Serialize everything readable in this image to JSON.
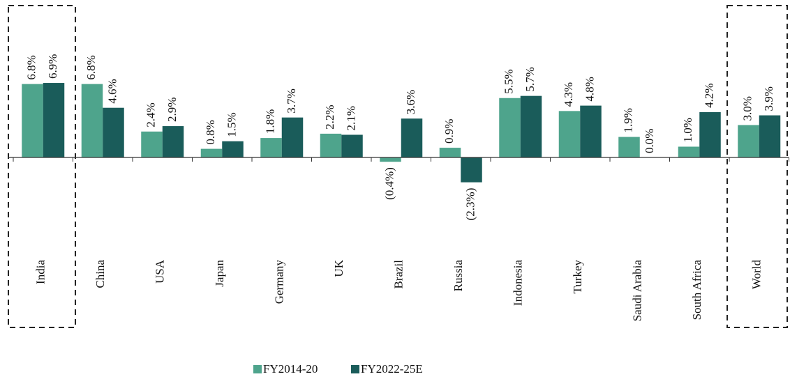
{
  "chart_data": {
    "type": "bar",
    "categories": [
      "India",
      "China",
      "USA",
      "Japan",
      "Germany",
      "UK",
      "Brazil",
      "Russia",
      "Indonesia",
      "Turkey",
      "Saudi Arabia",
      "South Africa",
      "World"
    ],
    "series": [
      {
        "name": "FY2014-20",
        "color": "#4ea48c",
        "values": [
          6.8,
          6.8,
          2.4,
          0.8,
          1.8,
          2.2,
          -0.4,
          0.9,
          5.5,
          4.3,
          1.9,
          1.0,
          3.0
        ],
        "value_labels": [
          "6.8%",
          "6.8%",
          "2.4%",
          "0.8%",
          "1.8%",
          "2.2%",
          "(0.4%)",
          "0.9%",
          "5.5%",
          "4.3%",
          "1.9%",
          "1.0%",
          "3.0%"
        ]
      },
      {
        "name": "FY2022-25E",
        "color": "#1a5c5a",
        "values": [
          6.9,
          4.6,
          2.9,
          1.5,
          3.7,
          2.1,
          3.6,
          -2.3,
          5.7,
          4.8,
          0.0,
          4.2,
          3.9
        ],
        "value_labels": [
          "6.9%",
          "4.6%",
          "2.9%",
          "1.5%",
          "3.7%",
          "2.1%",
          "3.6%",
          "(2.3%)",
          "5.7%",
          "4.8%",
          "0.0%",
          "4.2%",
          "3.9%"
        ]
      }
    ],
    "ylim": [
      -2.5,
      8
    ]
  }
}
